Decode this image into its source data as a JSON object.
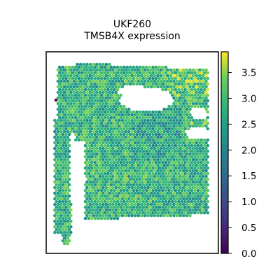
{
  "chart_data": {
    "type": "scatter",
    "subtype": "spatial-hex-spots",
    "title_lines": [
      "UKF260",
      "TMSB4X expression"
    ],
    "xlabel": "",
    "ylabel": "",
    "axes_ticks": false,
    "grid": false,
    "colormap": "viridis",
    "colorbar": {
      "placement": "right",
      "vmin": 0.0,
      "vmax": 3.9,
      "ticks": [
        0.0,
        0.5,
        1.0,
        1.5,
        2.0,
        2.5,
        3.0,
        3.5
      ],
      "tick_labels": [
        "0.0",
        "0.5",
        "1.0",
        "1.5",
        "2.0",
        "2.5",
        "3.0",
        "3.5"
      ]
    },
    "value_summary": {
      "typical_range": [
        2.0,
        3.6
      ],
      "median": 2.8,
      "high_regions": [
        "upper-right",
        "right-edge"
      ],
      "low_outlier": 0.1
    }
  }
}
